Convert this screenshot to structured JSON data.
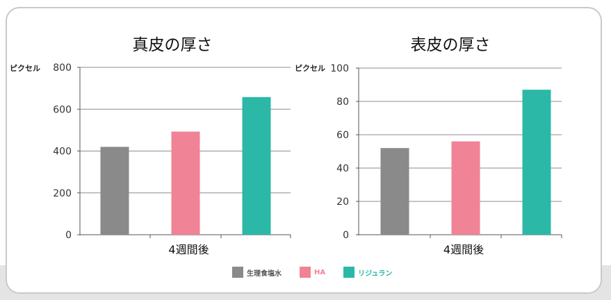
{
  "colors": {
    "saline": "#8a8a8a",
    "ha": "#f08396",
    "rejuran": "#2bb8a6",
    "axis": "#555555",
    "grid": "#8c8c8c"
  },
  "legend": {
    "items": [
      {
        "label": "生理食塩水",
        "color": "#8a8a8a",
        "text_color": "#555555"
      },
      {
        "label": "HA",
        "color": "#f08396",
        "text_color": "#f08396"
      },
      {
        "label": "リジュラン",
        "color": "#2bb8a6",
        "text_color": "#2bb8a6"
      }
    ]
  },
  "chart_data": [
    {
      "type": "bar",
      "title": "真皮の厚さ",
      "ylabel": "ピクセル",
      "xlabel": "4週間後",
      "ylim": [
        0,
        800
      ],
      "yticks": [
        0,
        200,
        400,
        600,
        800
      ],
      "series": [
        {
          "name": "生理食塩水",
          "values": [
            420
          ]
        },
        {
          "name": "HA",
          "values": [
            493
          ]
        },
        {
          "name": "リジュラン",
          "values": [
            658
          ]
        }
      ],
      "grid": true
    },
    {
      "type": "bar",
      "title": "表皮の厚さ",
      "ylabel": "ピクセル",
      "xlabel": "4週間後",
      "ylim": [
        0,
        100
      ],
      "yticks": [
        0,
        20,
        40,
        60,
        80,
        100
      ],
      "series": [
        {
          "name": "生理食塩水",
          "values": [
            52
          ]
        },
        {
          "name": "HA",
          "values": [
            56
          ]
        },
        {
          "name": "リジュラン",
          "values": [
            87
          ]
        }
      ],
      "grid": true
    }
  ]
}
